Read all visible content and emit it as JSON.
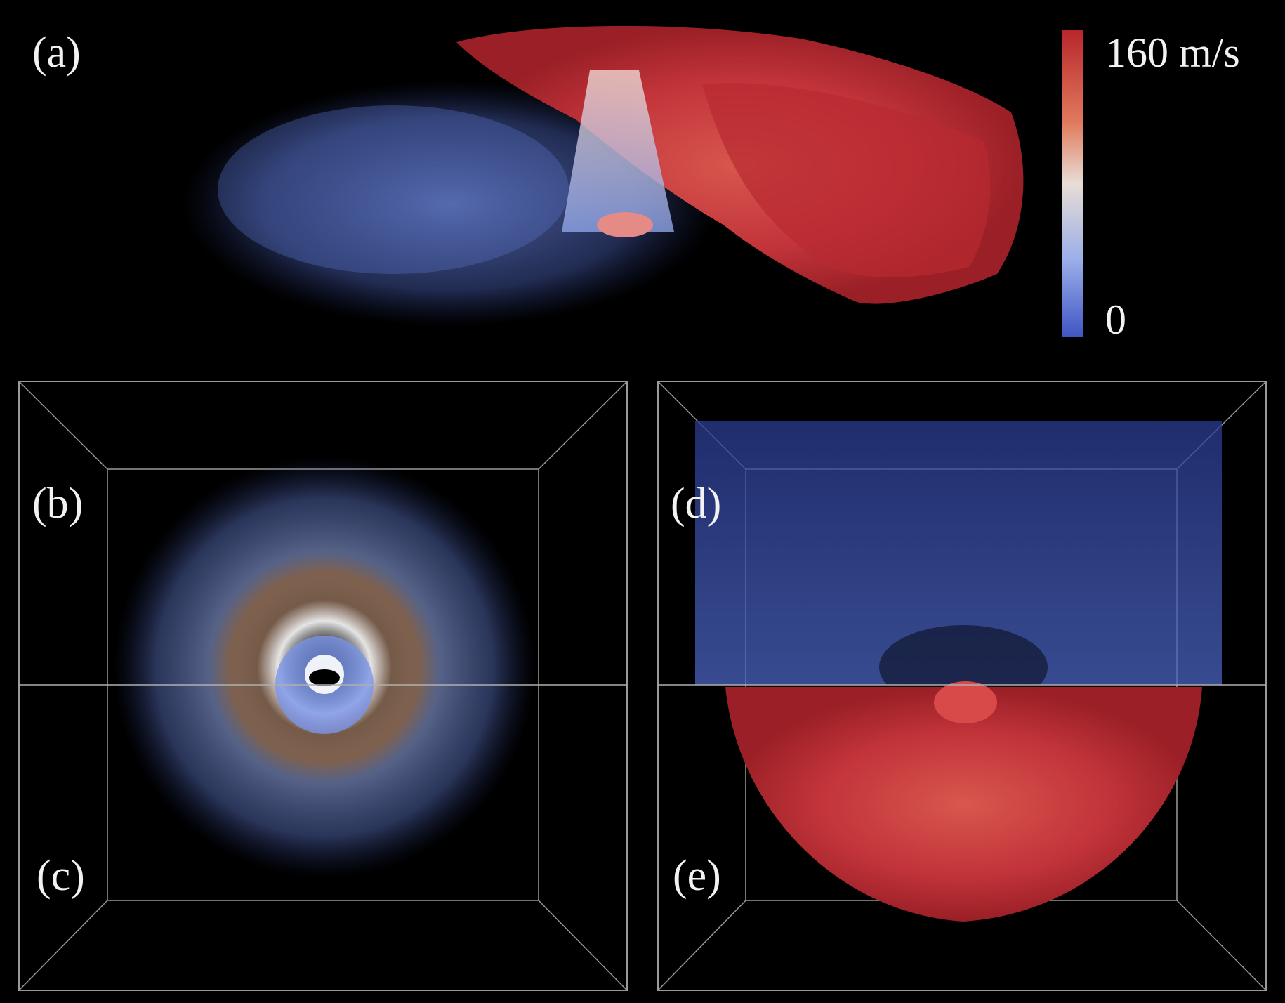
{
  "panels": [
    {
      "id": "a",
      "label": "(a)"
    },
    {
      "id": "b",
      "label": "(b)"
    },
    {
      "id": "c",
      "label": "(c)"
    },
    {
      "id": "d",
      "label": "(d)"
    },
    {
      "id": "e",
      "label": "(e)"
    }
  ],
  "colorbar": {
    "max_label": "160 m/s",
    "min_label": "0",
    "max_value": 160,
    "min_value": 0,
    "unit": "m/s",
    "colors": {
      "high": "#b8262c",
      "mid": "#e8ddd6",
      "low": "#3f55c4"
    }
  },
  "colors": {
    "background": "#000000",
    "fast_flow": "#c8363a",
    "slow_flow": "#6d86d8",
    "domain_edges": "#9a9a9a",
    "label_text": "#f2f2f2"
  }
}
